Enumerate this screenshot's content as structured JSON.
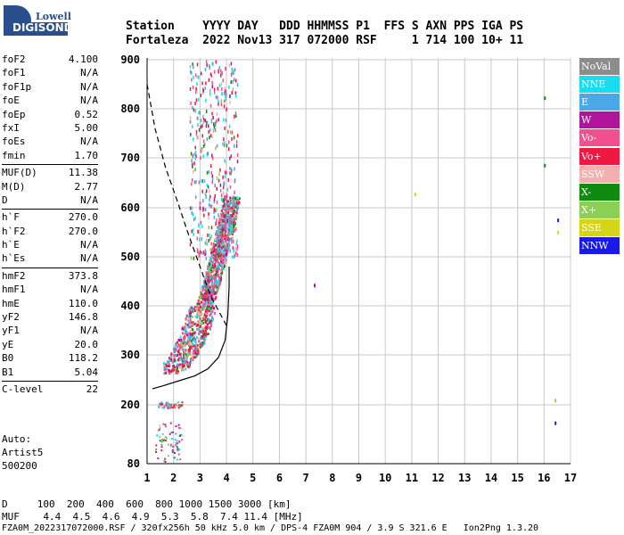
{
  "logo": {
    "line1": "Lowell",
    "line2": "DIGISONDE"
  },
  "header": {
    "row1": "Station    YYYY DAY   DDD HHMMSS P1  FFS S AXN PPS IGA PS",
    "row2": "Fortaleza  2022 Nov13 317 072000 RSF     1 714 100 10+ 11"
  },
  "params": {
    "group1": [
      {
        "label": "foF2",
        "value": "4.100"
      },
      {
        "label": "foF1",
        "value": "N/A"
      },
      {
        "label": "foF1p",
        "value": "N/A"
      },
      {
        "label": "foE",
        "value": "N/A"
      },
      {
        "label": "foEp",
        "value": "0.52"
      },
      {
        "label": "fxI",
        "value": "5.00"
      },
      {
        "label": "foEs",
        "value": "N/A"
      },
      {
        "label": "fmin",
        "value": "1.70"
      }
    ],
    "group2": [
      {
        "label": "MUF(D)",
        "value": "11.38"
      },
      {
        "label": "M(D)",
        "value": "2.77"
      },
      {
        "label": "D",
        "value": "N/A"
      }
    ],
    "group3": [
      {
        "label": "h`F",
        "value": "270.0"
      },
      {
        "label": "h`F2",
        "value": "270.0"
      },
      {
        "label": "h`E",
        "value": "N/A"
      },
      {
        "label": "h`Es",
        "value": "N/A"
      }
    ],
    "group4": [
      {
        "label": "hmF2",
        "value": "373.8"
      },
      {
        "label": "hmF1",
        "value": "N/A"
      },
      {
        "label": "hmE",
        "value": "110.0"
      },
      {
        "label": "yF2",
        "value": "146.8"
      },
      {
        "label": "yF1",
        "value": "N/A"
      },
      {
        "label": "yE",
        "value": "20.0"
      },
      {
        "label": "B0",
        "value": "118.2"
      },
      {
        "label": "B1",
        "value": "5.04"
      }
    ],
    "group5": [
      {
        "label": "C-level",
        "value": "22"
      }
    ]
  },
  "auto": {
    "line1": "Auto:",
    "line2": "Artist5",
    "line3": "500200"
  },
  "footer": {
    "d_row": "D     100  200  400  600  800 1000 1500 3000 [km]",
    "muf_row": "MUF    4.4  4.5  4.6  4.9  5.3  5.8  7.4 11.4 [MHz]",
    "info": "FZA0M_2022317072000.RSF / 320fx256h 50 kHz 5.0 km / DPS-4 FZA0M 904 / 3.9 S 321.6 E   Ion2Png 1.3.20"
  },
  "legend": [
    {
      "label": "NoVal",
      "color": "#8c8c8c"
    },
    {
      "label": "NNE",
      "color": "#19dcf0"
    },
    {
      "label": "E",
      "color": "#4aa8e8"
    },
    {
      "label": "W",
      "color": "#b0149a"
    },
    {
      "label": "Vo-",
      "color": "#f0508c"
    },
    {
      "label": "Vo+",
      "color": "#ee1840"
    },
    {
      "label": "SSW",
      "color": "#f4b0b0"
    },
    {
      "label": "X-",
      "color": "#118a11"
    },
    {
      "label": "X+",
      "color": "#8ccf55"
    },
    {
      "label": "SSE",
      "color": "#d4d41a"
    },
    {
      "label": "NNW",
      "color": "#1a1ae6"
    }
  ],
  "chart_data": {
    "type": "scatter",
    "x_ticks": [
      1,
      2,
      3,
      4,
      5,
      6,
      7,
      8,
      9,
      10,
      11,
      12,
      13,
      14,
      15,
      16,
      17
    ],
    "y_ticks": [
      80,
      200,
      300,
      400,
      500,
      600,
      700,
      800,
      900
    ],
    "xlim": [
      1,
      17
    ],
    "ylim": [
      80,
      900
    ],
    "grid": true,
    "profile_curve": {
      "name": "",
      "points": [
        [
          1.2,
          232
        ],
        [
          1.6,
          238
        ],
        [
          2.2,
          248
        ],
        [
          2.8,
          258
        ],
        [
          3.3,
          272
        ],
        [
          3.7,
          295
        ],
        [
          3.95,
          330
        ],
        [
          4.05,
          380
        ],
        [
          4.1,
          440
        ],
        [
          4.1,
          480
        ]
      ]
    },
    "muf_curve": {
      "name": "",
      "points": [
        [
          1.0,
          850
        ],
        [
          1.3,
          760
        ],
        [
          1.7,
          680
        ],
        [
          2.1,
          620
        ],
        [
          2.6,
          540
        ],
        [
          3.0,
          480
        ],
        [
          3.4,
          420
        ],
        [
          3.8,
          380
        ],
        [
          4.0,
          360
        ]
      ]
    },
    "isolated_points": [
      {
        "x": 16.0,
        "y": 825,
        "color": "#118a11"
      },
      {
        "x": 16.0,
        "y": 688,
        "color": "#118a11"
      },
      {
        "x": 16.5,
        "y": 578,
        "color": "#1a1ae6"
      },
      {
        "x": 16.5,
        "y": 553,
        "color": "#d4d41a"
      },
      {
        "x": 16.4,
        "y": 212,
        "color": "#8ccf55"
      },
      {
        "x": 16.4,
        "y": 166,
        "color": "#1a1ae6"
      },
      {
        "x": 11.1,
        "y": 630,
        "color": "#d4d41a"
      },
      {
        "x": 7.3,
        "y": 445,
        "color": "#b0149a"
      }
    ]
  }
}
